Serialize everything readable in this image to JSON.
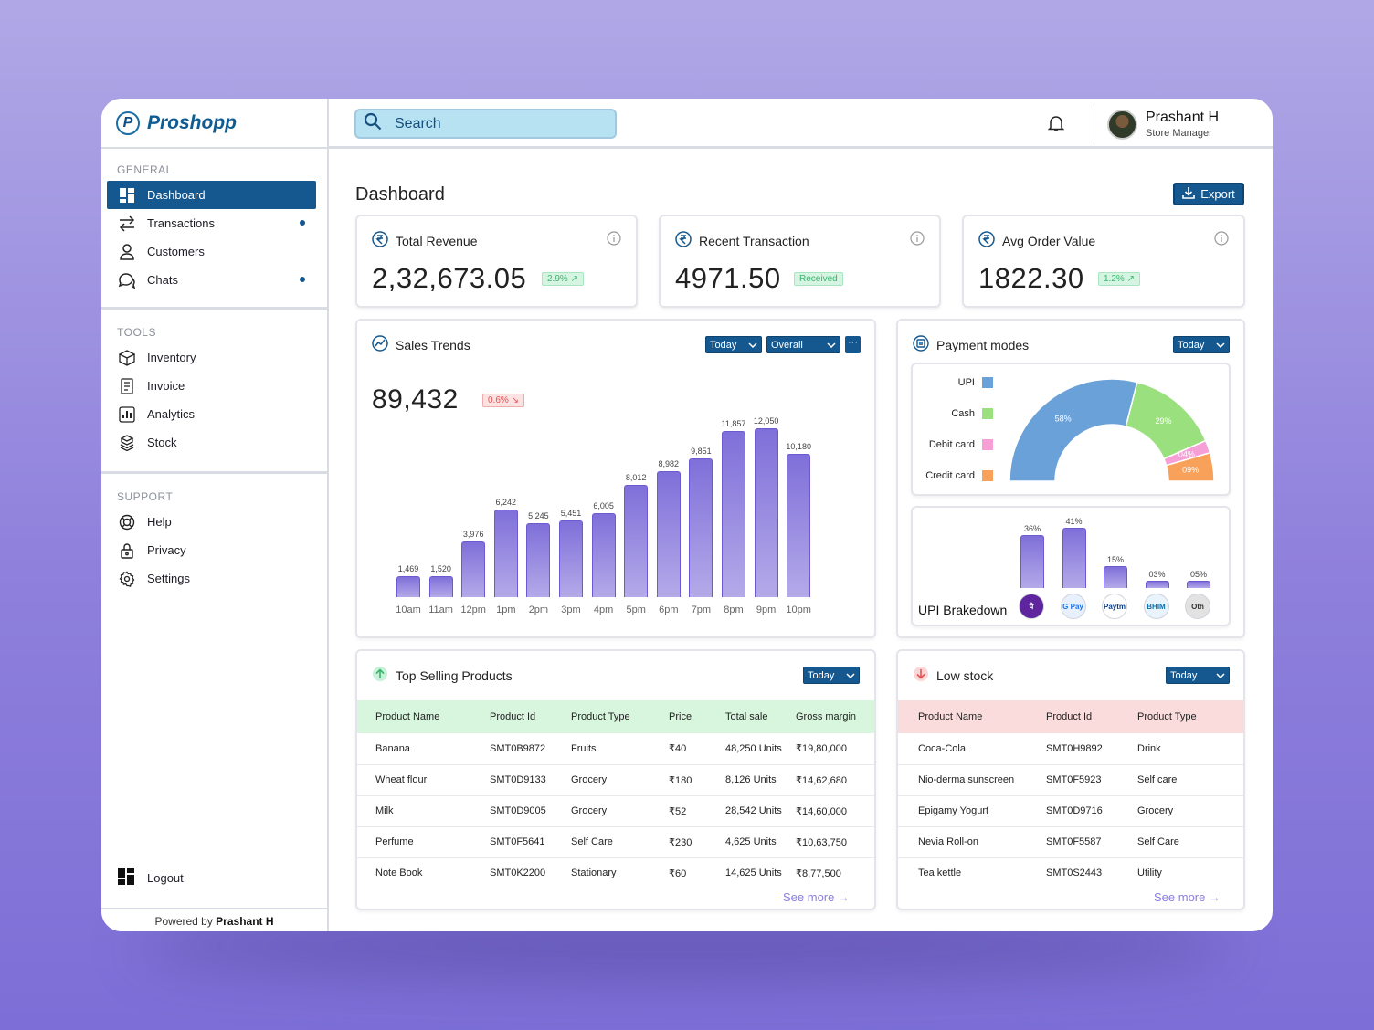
{
  "brand": {
    "logo_letter": "P",
    "name": "Proshopp"
  },
  "search": {
    "placeholder": "Search"
  },
  "user": {
    "name": "Prashant H",
    "role": "Store Manager"
  },
  "sidebar": {
    "general_title": "GENERAL",
    "general": [
      {
        "label": "Dashboard",
        "icon": "dashboard-icon",
        "active": true
      },
      {
        "label": "Transactions",
        "icon": "transactions-icon",
        "dot": true
      },
      {
        "label": "Customers",
        "icon": "user-icon"
      },
      {
        "label": "Chats",
        "icon": "chat-icon",
        "dot": true
      }
    ],
    "tools_title": "TOOLS",
    "tools": [
      {
        "label": "Inventory",
        "icon": "box-icon"
      },
      {
        "label": "Invoice",
        "icon": "invoice-icon"
      },
      {
        "label": "Analytics",
        "icon": "analytics-icon"
      },
      {
        "label": "Stock",
        "icon": "stock-icon"
      }
    ],
    "support_title": "SUPPORT",
    "support": [
      {
        "label": "Help",
        "icon": "help-icon"
      },
      {
        "label": "Privacy",
        "icon": "lock-icon"
      },
      {
        "label": "Settings",
        "icon": "gear-icon"
      }
    ],
    "logout": "Logout",
    "powered_prefix": "Powered by ",
    "powered_name": "Prashant H"
  },
  "page": {
    "title": "Dashboard",
    "export_label": "Export"
  },
  "kpis": [
    {
      "title": "Total Revenue",
      "value": "2,32,673.05",
      "badge": "2.9% ↗",
      "badge_color": "#3bb56d"
    },
    {
      "title": "Recent Transaction",
      "value": "4971.50",
      "badge": "Received",
      "badge_color": "#3bb56d"
    },
    {
      "title": "Avg Order Value",
      "value": "1822.30",
      "badge": "1.2% ↗",
      "badge_color": "#3bb56d"
    }
  ],
  "sales": {
    "title": "Sales Trends",
    "filter1": "Today",
    "filter2": "Overall",
    "more": "···",
    "value": "89,432",
    "badge": "0.6% ↘",
    "badge_color": "#e25454"
  },
  "chart_data": [
    {
      "type": "bar",
      "title": "Sales Trends",
      "categories": [
        "10am",
        "11am",
        "12pm",
        "1pm",
        "2pm",
        "3pm",
        "4pm",
        "5pm",
        "6pm",
        "7pm",
        "8pm",
        "9pm",
        "10pm"
      ],
      "values": [
        1469,
        1520,
        3976,
        6242,
        5245,
        5451,
        6005,
        8012,
        8982,
        9851,
        11857,
        12050,
        10180
      ],
      "value_labels": [
        "1,469",
        "1,520",
        "3,976",
        "6,242",
        "5,245",
        "5,451",
        "6,005",
        "8,012",
        "8,982",
        "9,851",
        "11,857",
        "12,050",
        "10,180"
      ],
      "ylim": [
        0,
        13000
      ],
      "grid": false
    },
    {
      "type": "pie",
      "title": "Payment modes",
      "categories": [
        "UPI",
        "Cash",
        "Debit card",
        "Credit card"
      ],
      "values": [
        58,
        29,
        4,
        9
      ],
      "value_labels": [
        "58%",
        "29%",
        "04%",
        "09%"
      ],
      "colors": [
        "#6aa1d9",
        "#9be07e",
        "#f59fd6",
        "#f8a15a"
      ],
      "legend": "left"
    },
    {
      "type": "bar",
      "title": "UPI Brakedown",
      "categories": [
        "PhonePe",
        "GPay",
        "Paytm",
        "BHIM",
        "Oth"
      ],
      "values": [
        36,
        41,
        15,
        3,
        5
      ],
      "value_labels": [
        "36%",
        "41%",
        "15%",
        "03%",
        "05%"
      ],
      "ylim": [
        0,
        45
      ]
    }
  ],
  "payment": {
    "title": "Payment modes",
    "filter": "Today",
    "upi_title": "UPI Brakedown",
    "upi_icons": [
      {
        "icon": "phonepe-icon",
        "text": "पे",
        "bg": "#5f259f",
        "fg": "#fff"
      },
      {
        "icon": "gpay-icon",
        "text": "G Pay",
        "bg": "#e8f0fe",
        "fg": "#1a73e8"
      },
      {
        "icon": "paytm-icon",
        "text": "Paytm",
        "bg": "#ffffff",
        "fg": "#0b3c88"
      },
      {
        "icon": "bhim-icon",
        "text": "BHIM",
        "bg": "#e8f3fb",
        "fg": "#0b6fa8"
      },
      {
        "icon": "other-icon",
        "text": "Oth",
        "bg": "#e2e2e2",
        "fg": "#333"
      }
    ]
  },
  "top_selling": {
    "title": "Top Selling Products",
    "filter": "Today",
    "header_bg": "#d7f6dd",
    "columns": [
      "Product Name",
      "Product Id",
      "Product Type",
      "Price",
      "Total sale",
      "Gross margin"
    ],
    "rows": [
      [
        "Banana",
        "SMT0B9872",
        "Fruits",
        "₹40",
        "48,250 Units",
        "₹19,80,000"
      ],
      [
        "Wheat flour",
        "SMT0D9133",
        "Grocery",
        "₹180",
        "8,126 Units",
        "₹14,62,680"
      ],
      [
        "Milk",
        "SMT0D9005",
        "Grocery",
        "₹52",
        "28,542 Units",
        "₹14,60,000"
      ],
      [
        "Perfume",
        "SMT0F5641",
        "Self Care",
        "₹230",
        "4,625 Units",
        "₹10,63,750"
      ],
      [
        "Note Book",
        "SMT0K2200",
        "Stationary",
        "₹60",
        "14,625 Units",
        "₹8,77,500"
      ]
    ],
    "see_more": "See more →"
  },
  "low_stock": {
    "title": "Low stock",
    "filter": "Today",
    "header_bg": "#fbdcdc",
    "columns": [
      "Product Name",
      "Product Id",
      "Product Type"
    ],
    "rows": [
      [
        "Coca-Cola",
        "SMT0H9892",
        "Drink"
      ],
      [
        "Nio-derma sunscreen",
        "SMT0F5923",
        "Self care"
      ],
      [
        "Epigamy Yogurt",
        "SMT0D9716",
        "Grocery"
      ],
      [
        "Nevia Roll-on",
        "SMT0F5587",
        "Self Care"
      ],
      [
        "Tea kettle",
        "SMT0S2443",
        "Utility"
      ]
    ],
    "see_more": "See more →"
  },
  "colors": {
    "primary": "#15588f",
    "bar": "#7f6fd9",
    "accent_link": "#8b7fe0"
  }
}
